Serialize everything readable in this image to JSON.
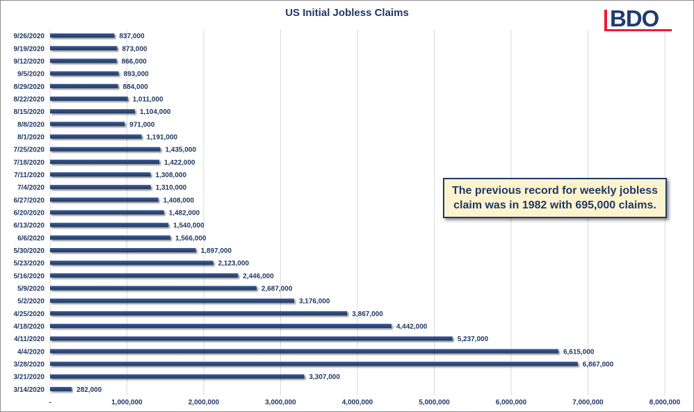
{
  "chart_data": {
    "type": "bar",
    "orientation": "horizontal",
    "title": "US Initial Jobless Claims",
    "categories": [
      "9/26/2020",
      "9/19/2020",
      "9/12/2020",
      "9/5/2020",
      "8/29/2020",
      "8/22/2020",
      "8/15/2020",
      "8/8/2020",
      "8/1/2020",
      "7/25/2020",
      "7/18/2020",
      "7/11/2020",
      "7/4/2020",
      "6/27/2020",
      "6/20/2020",
      "6/13/2020",
      "6/6/2020",
      "5/30/2020",
      "5/23/2020",
      "5/16/2020",
      "5/9/2020",
      "5/2/2020",
      "4/25/2020",
      "4/18/2020",
      "4/11/2020",
      "4/4/2020",
      "3/28/2020",
      "3/21/2020",
      "3/14/2020"
    ],
    "values": [
      837000,
      873000,
      866000,
      893000,
      884000,
      1011000,
      1104000,
      971000,
      1191000,
      1435000,
      1422000,
      1308000,
      1310000,
      1408000,
      1482000,
      1540000,
      1566000,
      1897000,
      2123000,
      2446000,
      2687000,
      3176000,
      3867000,
      4442000,
      5237000,
      6615000,
      6867000,
      3307000,
      282000
    ],
    "value_labels": [
      "837,000",
      "873,000",
      "866,000",
      "893,000",
      "884,000",
      "1,011,000",
      "1,104,000",
      "971,000",
      "1,191,000",
      "1,435,000",
      "1,422,000",
      "1,308,000",
      "1,310,000",
      "1,408,000",
      "1,482,000",
      "1,540,000",
      "1,566,000",
      "1,897,000",
      "2,123,000",
      "2,446,000",
      "2,687,000",
      "3,176,000",
      "3,867,000",
      "4,442,000",
      "5,237,000",
      "6,615,000",
      "6,867,000",
      "3,307,000",
      "282,000"
    ],
    "xlim": [
      0,
      8000000
    ],
    "x_ticks": [
      0,
      1000000,
      2000000,
      3000000,
      4000000,
      5000000,
      6000000,
      7000000,
      8000000
    ],
    "x_tick_labels": [
      "-",
      "1,000,000",
      "2,000,000",
      "3,000,000",
      "4,000,000",
      "5,000,000",
      "6,000,000",
      "7,000,000",
      "8,000,000"
    ],
    "grid": "vertical",
    "colors": {
      "bar": "#1f3864",
      "bar_light": "#3d5a94",
      "grid": "#d9d9d9",
      "label": "#1f3864"
    },
    "annotation": {
      "line1": "The previous record for weekly jobless",
      "line2": "claim was in 1982 with 695,000 claims."
    }
  },
  "logo": {
    "text": "BDO",
    "color": "#e81a3b"
  }
}
